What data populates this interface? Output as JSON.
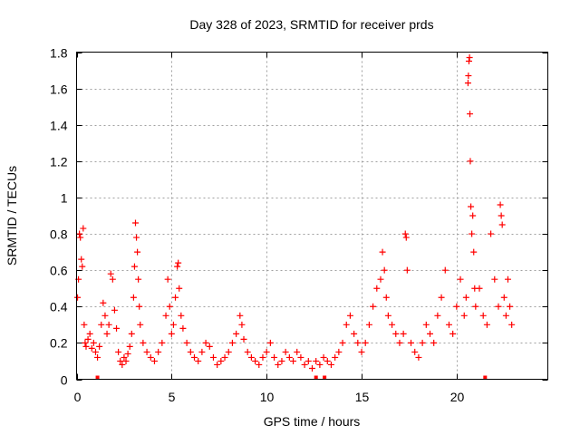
{
  "chart_data": {
    "type": "scatter",
    "title": "Day 328 of 2023, SRMTID for receiver prds",
    "xlabel": "GPS time / hours",
    "ylabel": "SRMTID / TECUs",
    "xlim": [
      0,
      24.8
    ],
    "ylim": [
      0,
      1.8
    ],
    "xticks": [
      0,
      5,
      10,
      15,
      20
    ],
    "xtick_labels": [
      "0",
      "5",
      "10",
      "15",
      "20"
    ],
    "yticks": [
      0,
      0.2,
      0.4,
      0.6,
      0.8,
      1,
      1.2,
      1.4,
      1.6,
      1.8
    ],
    "ytick_labels": [
      "0",
      "0.2",
      "0.4",
      "0.6",
      "0.8",
      "1",
      "1.2",
      "1.4",
      "1.6",
      "1.8"
    ],
    "grid": true,
    "marker": "plus",
    "color": "#ff0000",
    "series": [
      {
        "name": "SRMTID",
        "points": [
          [
            0.05,
            0.45
          ],
          [
            0.1,
            0.55
          ],
          [
            0.15,
            0.8
          ],
          [
            0.2,
            0.78
          ],
          [
            0.25,
            0.66
          ],
          [
            0.3,
            0.62
          ],
          [
            0.35,
            0.83
          ],
          [
            0.4,
            0.3
          ],
          [
            0.45,
            0.2
          ],
          [
            0.5,
            0.18
          ],
          [
            0.6,
            0.22
          ],
          [
            0.7,
            0.25
          ],
          [
            0.8,
            0.17
          ],
          [
            0.9,
            0.2
          ],
          [
            1.0,
            0.15
          ],
          [
            1.1,
            0.12
          ],
          [
            1.2,
            0.18
          ],
          [
            1.3,
            0.3
          ],
          [
            1.4,
            0.42
          ],
          [
            1.5,
            0.35
          ],
          [
            1.6,
            0.25
          ],
          [
            1.7,
            0.3
          ],
          [
            1.8,
            0.58
          ],
          [
            1.9,
            0.55
          ],
          [
            2.0,
            0.38
          ],
          [
            2.1,
            0.28
          ],
          [
            2.2,
            0.15
          ],
          [
            2.3,
            0.1
          ],
          [
            2.4,
            0.08
          ],
          [
            2.5,
            0.12
          ],
          [
            2.6,
            0.1
          ],
          [
            2.7,
            0.14
          ],
          [
            2.8,
            0.18
          ],
          [
            2.9,
            0.25
          ],
          [
            3.0,
            0.45
          ],
          [
            3.05,
            0.62
          ],
          [
            3.1,
            0.86
          ],
          [
            3.15,
            0.78
          ],
          [
            3.2,
            0.7
          ],
          [
            3.25,
            0.55
          ],
          [
            3.3,
            0.4
          ],
          [
            3.35,
            0.3
          ],
          [
            3.5,
            0.2
          ],
          [
            3.7,
            0.15
          ],
          [
            3.9,
            0.12
          ],
          [
            4.1,
            0.1
          ],
          [
            4.3,
            0.15
          ],
          [
            4.5,
            0.2
          ],
          [
            4.7,
            0.35
          ],
          [
            4.8,
            0.55
          ],
          [
            4.9,
            0.4
          ],
          [
            5.0,
            0.25
          ],
          [
            5.1,
            0.3
          ],
          [
            5.2,
            0.45
          ],
          [
            5.3,
            0.62
          ],
          [
            5.35,
            0.64
          ],
          [
            5.4,
            0.5
          ],
          [
            5.5,
            0.35
          ],
          [
            5.6,
            0.28
          ],
          [
            5.8,
            0.2
          ],
          [
            6.0,
            0.15
          ],
          [
            6.2,
            0.12
          ],
          [
            6.4,
            0.1
          ],
          [
            6.6,
            0.15
          ],
          [
            6.8,
            0.2
          ],
          [
            7.0,
            0.18
          ],
          [
            7.2,
            0.12
          ],
          [
            7.4,
            0.08
          ],
          [
            7.6,
            0.1
          ],
          [
            7.8,
            0.12
          ],
          [
            8.0,
            0.15
          ],
          [
            8.2,
            0.2
          ],
          [
            8.4,
            0.25
          ],
          [
            8.6,
            0.35
          ],
          [
            8.7,
            0.3
          ],
          [
            8.8,
            0.22
          ],
          [
            9.0,
            0.15
          ],
          [
            9.2,
            0.12
          ],
          [
            9.4,
            0.1
          ],
          [
            9.6,
            0.08
          ],
          [
            9.8,
            0.12
          ],
          [
            10.0,
            0.15
          ],
          [
            10.2,
            0.2
          ],
          [
            10.4,
            0.12
          ],
          [
            10.6,
            0.08
          ],
          [
            10.8,
            0.1
          ],
          [
            11.0,
            0.15
          ],
          [
            11.2,
            0.12
          ],
          [
            11.4,
            0.1
          ],
          [
            11.6,
            0.15
          ],
          [
            11.8,
            0.12
          ],
          [
            12.0,
            0.08
          ],
          [
            12.2,
            0.1
          ],
          [
            12.4,
            0.06
          ],
          [
            12.6,
            0.1
          ],
          [
            12.8,
            0.08
          ],
          [
            13.0,
            0.12
          ],
          [
            13.2,
            0.1
          ],
          [
            13.4,
            0.08
          ],
          [
            13.6,
            0.12
          ],
          [
            13.8,
            0.15
          ],
          [
            14.0,
            0.2
          ],
          [
            14.2,
            0.3
          ],
          [
            14.4,
            0.35
          ],
          [
            14.6,
            0.25
          ],
          [
            14.8,
            0.2
          ],
          [
            15.0,
            0.15
          ],
          [
            15.2,
            0.2
          ],
          [
            15.4,
            0.3
          ],
          [
            15.6,
            0.4
          ],
          [
            15.8,
            0.5
          ],
          [
            16.0,
            0.55
          ],
          [
            16.1,
            0.7
          ],
          [
            16.2,
            0.6
          ],
          [
            16.3,
            0.45
          ],
          [
            16.4,
            0.35
          ],
          [
            16.6,
            0.3
          ],
          [
            16.8,
            0.25
          ],
          [
            17.0,
            0.2
          ],
          [
            17.2,
            0.25
          ],
          [
            17.3,
            0.8
          ],
          [
            17.35,
            0.78
          ],
          [
            17.4,
            0.6
          ],
          [
            17.6,
            0.2
          ],
          [
            17.8,
            0.15
          ],
          [
            18.0,
            0.12
          ],
          [
            18.2,
            0.2
          ],
          [
            18.4,
            0.3
          ],
          [
            18.6,
            0.25
          ],
          [
            18.8,
            0.2
          ],
          [
            19.0,
            0.35
          ],
          [
            19.2,
            0.45
          ],
          [
            19.4,
            0.6
          ],
          [
            19.6,
            0.3
          ],
          [
            19.8,
            0.25
          ],
          [
            20.0,
            0.4
          ],
          [
            20.2,
            0.55
          ],
          [
            20.4,
            0.35
          ],
          [
            20.5,
            0.45
          ],
          [
            20.6,
            1.63
          ],
          [
            20.62,
            1.67
          ],
          [
            20.65,
            1.75
          ],
          [
            20.68,
            1.77
          ],
          [
            20.7,
            1.46
          ],
          [
            20.72,
            1.2
          ],
          [
            20.75,
            0.95
          ],
          [
            20.8,
            0.8
          ],
          [
            20.85,
            0.9
          ],
          [
            20.9,
            0.7
          ],
          [
            20.95,
            0.5
          ],
          [
            21.0,
            0.4
          ],
          [
            21.2,
            0.5
          ],
          [
            21.4,
            0.35
          ],
          [
            21.6,
            0.3
          ],
          [
            21.8,
            0.8
          ],
          [
            22.0,
            0.55
          ],
          [
            22.2,
            0.4
          ],
          [
            22.3,
            0.96
          ],
          [
            22.35,
            0.9
          ],
          [
            22.4,
            0.85
          ],
          [
            22.5,
            0.45
          ],
          [
            22.6,
            0.35
          ],
          [
            22.7,
            0.55
          ],
          [
            22.8,
            0.4
          ],
          [
            22.9,
            0.3
          ]
        ]
      }
    ],
    "bottom_markers_x": [
      1.1,
      12.6,
      13.05,
      21.5
    ]
  }
}
